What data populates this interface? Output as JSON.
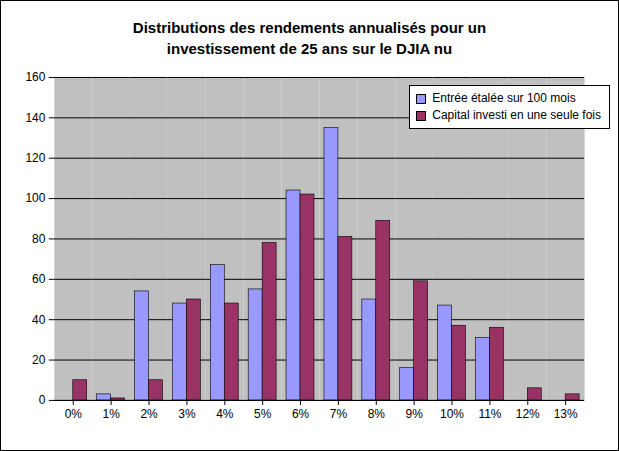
{
  "chart_data": {
    "type": "bar",
    "title": "Distributions des rendements annualisés pour un\ninvestissement de 25 ans sur le DJIA nu",
    "categories": [
      "0%",
      "1%",
      "2%",
      "3%",
      "4%",
      "5%",
      "6%",
      "7%",
      "8%",
      "9%",
      "10%",
      "11%",
      "12%",
      "13%"
    ],
    "series": [
      {
        "name": "Entrée étalée sur 100 mois",
        "color": "#9999ff",
        "values": [
          0,
          3,
          54,
          48,
          67,
          55,
          104,
          135,
          50,
          16,
          47,
          31,
          0,
          0
        ]
      },
      {
        "name": "Capital investi en une seule fois",
        "color": "#993366",
        "values": [
          10,
          1,
          10,
          50,
          48,
          78,
          102,
          81,
          89,
          59,
          37,
          36,
          6,
          3
        ]
      }
    ],
    "ylim": [
      0,
      160
    ],
    "yticks": [
      0,
      20,
      40,
      60,
      80,
      100,
      120,
      140,
      160
    ],
    "grid": true,
    "legend": "top-right"
  }
}
